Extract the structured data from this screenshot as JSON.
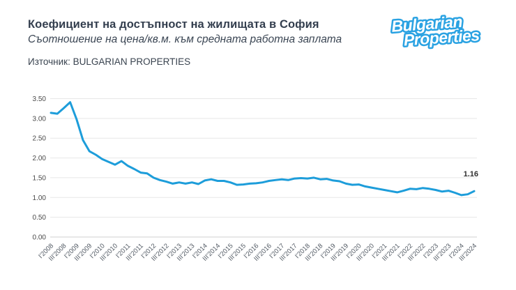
{
  "header": {
    "title": "Коефициент на достъпност на жилищата в София",
    "subtitle": "Съотношение на цена/кв.м. към средната работна заплата",
    "source": "Източник: BULGARIAN PROPERTIES"
  },
  "logo": {
    "line1": "Bulgarian",
    "line2": "Properties",
    "color": "#2aa2e2"
  },
  "chart_data": {
    "type": "line",
    "title": "Коефициент на достъпност на жилищата в София",
    "xlabel": "",
    "ylabel": "",
    "ylim": [
      0,
      3.5
    ],
    "grid": true,
    "line_color": "#1d9dda",
    "yticks": [
      0,
      0.5,
      1,
      1.5,
      2,
      2.5,
      3,
      3.5
    ],
    "ytick_labels": [
      "0.00",
      "0.50",
      "1.00",
      "1.50",
      "2.00",
      "2.50",
      "3.00",
      "3.50"
    ],
    "x_tick_labels": [
      "I'2008",
      "III'2008",
      "I'2009",
      "III'2009",
      "I'2010",
      "III'2010",
      "I'2011",
      "III'2011",
      "I'2012",
      "III'2012",
      "I'2013",
      "III'2013",
      "I'2014",
      "III'2014",
      "I'2015",
      "III'2015",
      "I'2016",
      "III'2016",
      "I'2017",
      "III'2017",
      "I'2018",
      "III'2018",
      "I'2019",
      "III'2019",
      "I'2020",
      "III'2020",
      "I'2021",
      "III'2021",
      "I'2022",
      "III'2022",
      "I'2023",
      "III'2023",
      "I'2024",
      "III'2024"
    ],
    "x_tick_every": 2,
    "values": [
      3.14,
      3.12,
      3.26,
      3.41,
      2.98,
      2.45,
      2.17,
      2.08,
      1.97,
      1.9,
      1.83,
      1.92,
      1.8,
      1.72,
      1.63,
      1.61,
      1.5,
      1.44,
      1.4,
      1.35,
      1.38,
      1.35,
      1.38,
      1.34,
      1.43,
      1.46,
      1.42,
      1.42,
      1.38,
      1.32,
      1.33,
      1.35,
      1.36,
      1.38,
      1.42,
      1.44,
      1.46,
      1.44,
      1.48,
      1.49,
      1.48,
      1.5,
      1.46,
      1.47,
      1.43,
      1.41,
      1.35,
      1.32,
      1.33,
      1.28,
      1.25,
      1.22,
      1.19,
      1.16,
      1.13,
      1.17,
      1.22,
      1.21,
      1.24,
      1.22,
      1.19,
      1.15,
      1.17,
      1.12,
      1.06,
      1.08,
      1.16
    ],
    "last_value_label": "1.16",
    "legend": null
  }
}
